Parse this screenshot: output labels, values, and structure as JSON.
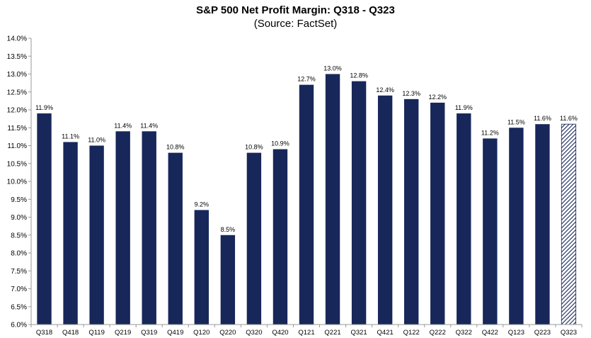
{
  "chart_data": {
    "type": "bar",
    "title": "S&P 500 Net Profit Margin: Q318 - Q323",
    "subtitle": "(Source: FactSet)",
    "xlabel": "",
    "ylabel": "",
    "ylim": [
      6.0,
      14.0
    ],
    "ytick_step": 0.5,
    "ytick_format": "%",
    "grid": false,
    "legend": "none",
    "categories": [
      "Q318",
      "Q418",
      "Q119",
      "Q219",
      "Q319",
      "Q419",
      "Q120",
      "Q220",
      "Q320",
      "Q420",
      "Q121",
      "Q221",
      "Q321",
      "Q421",
      "Q122",
      "Q222",
      "Q322",
      "Q422",
      "Q123",
      "Q223",
      "Q323"
    ],
    "values": [
      11.9,
      11.1,
      11.0,
      11.4,
      11.4,
      10.8,
      9.2,
      8.5,
      10.8,
      10.9,
      12.7,
      13.0,
      12.8,
      12.4,
      12.3,
      12.2,
      11.9,
      11.2,
      11.5,
      11.6,
      11.6
    ],
    "data_labels": [
      "11.9%",
      "11.1%",
      "11.0%",
      "11.4%",
      "11.4%",
      "10.8%",
      "9.2%",
      "8.5%",
      "10.8%",
      "10.9%",
      "12.7%",
      "13.0%",
      "12.8%",
      "12.4%",
      "12.3%",
      "12.2%",
      "11.9%",
      "11.2%",
      "11.5%",
      "11.6%",
      "11.6%"
    ],
    "estimated": [
      false,
      false,
      false,
      false,
      false,
      false,
      false,
      false,
      false,
      false,
      false,
      false,
      false,
      false,
      false,
      false,
      false,
      false,
      false,
      false,
      true
    ],
    "colors": {
      "bar": "#17275a",
      "bar_hatch": "#17275a",
      "axis": "#999999",
      "text": "#000000"
    }
  }
}
